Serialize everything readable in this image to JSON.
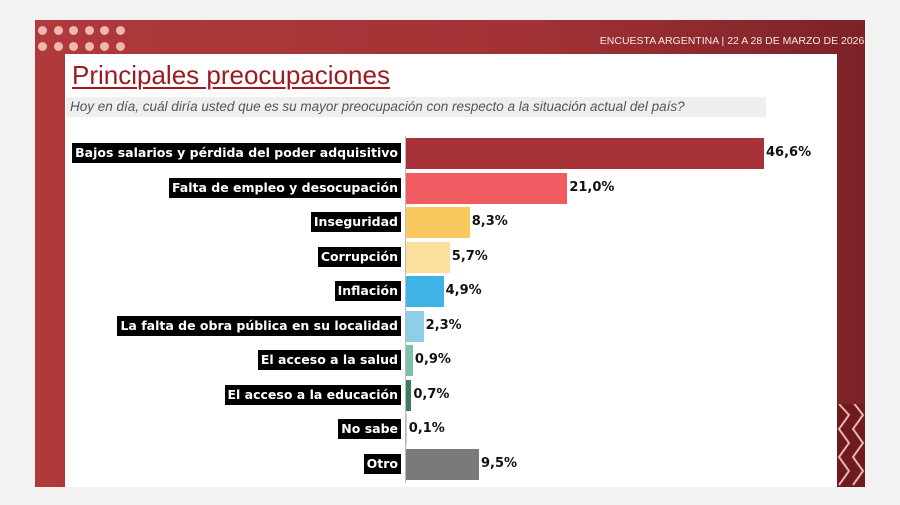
{
  "header": {
    "survey_label": "ENCUESTA ARGENTINA | 22 A 28 DE MARZO DE 2026  |"
  },
  "colors": {
    "frame": "#a8323a",
    "title": "#9c1b22"
  },
  "chart_data": {
    "type": "bar",
    "orientation": "horizontal",
    "title": "Principales preocupaciones",
    "subtitle": "Hoy en día, cuál diría usted que es su mayor preocupación con respecto a la situación actual del país?",
    "categories": [
      "Bajos salarios y pérdida del poder adquisitivo",
      "Falta de empleo y desocupación",
      "Inseguridad",
      "Corrupción",
      "Inflación",
      "La falta de obra pública en su localidad",
      "El acceso a la salud",
      "El acceso a la educación",
      "No sabe",
      "Otro"
    ],
    "values": [
      46.6,
      21.0,
      8.3,
      5.7,
      4.9,
      2.3,
      0.9,
      0.7,
      0.1,
      9.5
    ],
    "labels": [
      "46,6%",
      "21,0%",
      "8,3%",
      "5,7%",
      "4,9%",
      "2,3%",
      "0,9%",
      "0,7%",
      "0,1%",
      "9,5%"
    ],
    "colors": [
      "#a8323a",
      "#ef5b61",
      "#f9c85e",
      "#fbdf9f",
      "#3fb2e6",
      "#8ccfe6",
      "#7bc3a4",
      "#3e7d5c",
      "#cccccc",
      "#7a7a7a"
    ],
    "unit": "%",
    "grid": false,
    "legend": "none"
  }
}
